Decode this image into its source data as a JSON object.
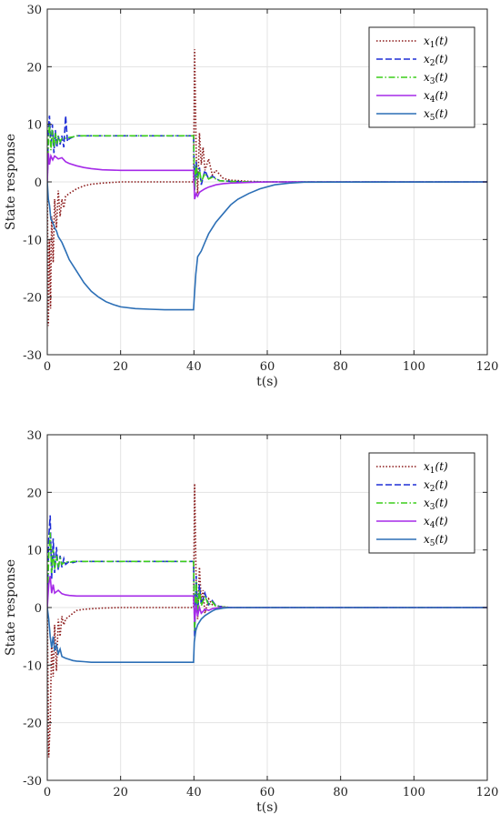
{
  "chart_data": [
    {
      "type": "line",
      "xlabel": "t(s)",
      "ylabel": "State response",
      "xlim": [
        0,
        120
      ],
      "ylim": [
        -30,
        30
      ],
      "xticks": [
        0,
        20,
        40,
        60,
        80,
        100,
        120
      ],
      "yticks": [
        -30,
        -20,
        -10,
        0,
        10,
        20,
        30
      ],
      "grid": true,
      "legend_position": "top-right",
      "series": [
        {
          "name": "x_1(t)",
          "label_main": "x",
          "label_sub": "1",
          "label_tail": "(t)",
          "color": "#8B1A1A",
          "dash": "dotted",
          "x": [
            0,
            0.3,
            0.6,
            0.9,
            1.2,
            1.6,
            2.0,
            2.5,
            3.0,
            3.5,
            4.0,
            4.5,
            5.0,
            6,
            8,
            10,
            12,
            15,
            20,
            25,
            30,
            35,
            39.9,
            40.2,
            40.6,
            41.0,
            41.5,
            42.0,
            42.5,
            43.0,
            44,
            45,
            46,
            48,
            50,
            55,
            60,
            120
          ],
          "y": [
            0,
            -25,
            -10,
            -22,
            -6,
            -14,
            -3,
            -8,
            -1.5,
            -6,
            -3,
            -4.5,
            -2.5,
            -2,
            -1.2,
            -0.7,
            -0.4,
            -0.2,
            0,
            0,
            0,
            0,
            0,
            23,
            5,
            -2,
            8.5,
            3,
            6,
            2,
            4,
            1.2,
            2,
            0.6,
            0.3,
            0.1,
            0,
            0
          ]
        },
        {
          "name": "x_2(t)",
          "label_main": "x",
          "label_sub": "2",
          "label_tail": "(t)",
          "color": "#1f2ed6",
          "dash": "dashed",
          "x": [
            0,
            0.3,
            0.6,
            1.0,
            1.4,
            1.8,
            2.2,
            2.6,
            3.0,
            3.5,
            4.0,
            4.5,
            5.0,
            5.5,
            6.0,
            7,
            8,
            10,
            15,
            20,
            30,
            39.9,
            40.2,
            40.6,
            41.0,
            41.5,
            42.0,
            43,
            44,
            45,
            47,
            50,
            55,
            120
          ],
          "y": [
            0,
            9,
            11.5,
            6,
            10,
            5,
            9,
            6,
            8,
            6.5,
            8,
            6,
            11.5,
            7,
            7.5,
            7.8,
            8,
            8,
            8,
            8,
            8,
            8,
            -1.5,
            3.5,
            0.5,
            2.5,
            -0.5,
            2,
            0.5,
            1,
            0.2,
            0.1,
            0,
            0
          ]
        },
        {
          "name": "x_3(t)",
          "label_main": "x",
          "label_sub": "3",
          "label_tail": "(t)",
          "color": "#3ccd1a",
          "dash": "dashdot",
          "x": [
            0,
            0.3,
            0.6,
            1.0,
            1.4,
            1.8,
            2.2,
            2.6,
            3.0,
            3.5,
            4.0,
            5,
            6,
            7,
            8,
            10,
            15,
            20,
            30,
            39.9,
            40.2,
            40.6,
            41.0,
            41.5,
            42.0,
            43,
            44,
            45,
            47,
            50,
            55,
            120
          ],
          "y": [
            0,
            7,
            10,
            5.5,
            9,
            6,
            8.5,
            6.5,
            8,
            7,
            7.5,
            7.6,
            7.7,
            7.8,
            8,
            8,
            8,
            8,
            8,
            8,
            -1.5,
            3,
            0.5,
            2.2,
            0,
            1.5,
            0.5,
            0.8,
            0.2,
            0.1,
            0,
            0
          ]
        },
        {
          "name": "x_4(t)",
          "label_main": "x",
          "label_sub": "4",
          "label_tail": "(t)",
          "color": "#a52ae8",
          "dash": "solid",
          "x": [
            0,
            0.3,
            0.6,
            1.0,
            1.5,
            2.0,
            3.0,
            4.0,
            5,
            6,
            8,
            10,
            12,
            15,
            20,
            30,
            39.9,
            40.2,
            40.6,
            41.0,
            41.5,
            42,
            43,
            44,
            46,
            48,
            50,
            55,
            60,
            120
          ],
          "y": [
            0,
            5,
            3,
            4.5,
            3.8,
            4.5,
            4,
            4.2,
            3.5,
            3.2,
            2.8,
            2.5,
            2.3,
            2.1,
            2,
            2,
            2,
            -3,
            -2,
            -2.5,
            -1.8,
            -1.6,
            -1.2,
            -0.9,
            -0.5,
            -0.3,
            -0.2,
            -0.1,
            0,
            0
          ]
        },
        {
          "name": "x_5(t)",
          "label_main": "x",
          "label_sub": "5",
          "label_tail": "(t)",
          "color": "#2c6fb6",
          "dash": "solid",
          "x": [
            0,
            0.3,
            0.6,
            1.0,
            1.5,
            2.0,
            2.5,
            3.0,
            4.0,
            5,
            6,
            8,
            10,
            12,
            14,
            16,
            18,
            20,
            24,
            28,
            32,
            36,
            39.9,
            40.1,
            40.5,
            41,
            42,
            43,
            44,
            46,
            48,
            50,
            52,
            55,
            58,
            62,
            66,
            70,
            120
          ],
          "y": [
            0,
            -3,
            -4,
            -6.5,
            -7,
            -8,
            -8.5,
            -9.5,
            -10.5,
            -12,
            -13.5,
            -15.5,
            -17.5,
            -19,
            -20,
            -20.8,
            -21.3,
            -21.7,
            -22,
            -22.1,
            -22.2,
            -22.2,
            -22.2,
            -20,
            -16,
            -13,
            -12,
            -10.5,
            -9,
            -7,
            -5.5,
            -4,
            -3,
            -2,
            -1.2,
            -0.5,
            -0.2,
            -0.05,
            0
          ]
        }
      ]
    },
    {
      "type": "line",
      "xlabel": "t(s)",
      "ylabel": "State response",
      "xlim": [
        0,
        120
      ],
      "ylim": [
        -30,
        30
      ],
      "xticks": [
        0,
        20,
        40,
        60,
        80,
        100,
        120
      ],
      "yticks": [
        -30,
        -20,
        -10,
        0,
        10,
        20,
        30
      ],
      "grid": true,
      "legend_position": "top-right",
      "series": [
        {
          "name": "x_1(t)",
          "label_main": "x",
          "label_sub": "1",
          "label_tail": "(t)",
          "color": "#8B1A1A",
          "dash": "dotted",
          "x": [
            0,
            0.4,
            0.8,
            1.2,
            1.6,
            2.0,
            2.5,
            3.0,
            3.5,
            4.0,
            4.5,
            5,
            6,
            7,
            8,
            10,
            15,
            20,
            30,
            39.9,
            40.2,
            40.6,
            41,
            41.5,
            42,
            42.5,
            43,
            44,
            45,
            47,
            50,
            120
          ],
          "y": [
            0,
            -26,
            -20,
            -6,
            -12,
            -3,
            -11,
            -2,
            -5,
            -1.5,
            -3,
            -2,
            -1.5,
            -1,
            -0.5,
            -0.3,
            -0.1,
            0,
            0,
            0,
            21.5,
            4,
            -2,
            7,
            1,
            3,
            -1,
            1.5,
            0.5,
            0.2,
            0,
            0
          ]
        },
        {
          "name": "x_2(t)",
          "label_main": "x",
          "label_sub": "2",
          "label_tail": "(t)",
          "color": "#1f2ed6",
          "dash": "dashed",
          "x": [
            0,
            0.4,
            0.8,
            1.2,
            1.6,
            2.0,
            2.5,
            3.0,
            3.5,
            4.0,
            4.5,
            5,
            6,
            7,
            8,
            10,
            20,
            30,
            39.9,
            40.2,
            40.6,
            41,
            41.5,
            42,
            43,
            44,
            45,
            46,
            48,
            50,
            120
          ],
          "y": [
            0,
            12,
            16,
            5,
            12,
            6,
            10.5,
            6.5,
            9,
            7,
            8.5,
            7.5,
            8,
            7.8,
            8,
            8,
            8,
            8,
            8,
            -5,
            5.5,
            -1,
            4,
            0.5,
            2.5,
            0.5,
            1.2,
            0.3,
            0.1,
            0,
            0
          ]
        },
        {
          "name": "x_3(t)",
          "label_main": "x",
          "label_sub": "3",
          "label_tail": "(t)",
          "color": "#3ccd1a",
          "dash": "dashdot",
          "x": [
            0,
            0.4,
            0.8,
            1.2,
            1.6,
            2.0,
            2.5,
            3.0,
            3.5,
            4.0,
            5,
            6,
            7,
            8,
            10,
            20,
            30,
            39.9,
            40.2,
            40.6,
            41,
            41.5,
            42,
            43,
            44,
            45,
            46,
            48,
            50,
            120
          ],
          "y": [
            0,
            9,
            13,
            6,
            10,
            6.5,
            9,
            7,
            8.5,
            7.5,
            8,
            7.8,
            8,
            8,
            8,
            8,
            8,
            8,
            -4,
            4.5,
            -0.5,
            3,
            0.3,
            2,
            0.4,
            1,
            0.2,
            0.1,
            0,
            0
          ]
        },
        {
          "name": "x_4(t)",
          "label_main": "x",
          "label_sub": "4",
          "label_tail": "(t)",
          "color": "#a52ae8",
          "dash": "solid",
          "x": [
            0,
            0.4,
            0.8,
            1.2,
            1.6,
            2.0,
            3,
            4,
            5,
            6,
            8,
            10,
            15,
            20,
            30,
            39.9,
            40.2,
            40.6,
            41,
            41.5,
            42,
            43,
            44,
            45,
            46,
            48,
            50,
            120
          ],
          "y": [
            0,
            4,
            5.5,
            2.5,
            4,
            2.5,
            3,
            2.4,
            2.2,
            2.1,
            2,
            2,
            2,
            2,
            2,
            2,
            -2.5,
            0.5,
            -1.5,
            0,
            -1,
            -0.3,
            -0.5,
            -0.2,
            -0.1,
            0,
            0,
            0
          ]
        },
        {
          "name": "x_5(t)",
          "label_main": "x",
          "label_sub": "5",
          "label_tail": "(t)",
          "color": "#2c6fb6",
          "dash": "solid",
          "x": [
            0,
            0.4,
            0.8,
            1.2,
            1.6,
            2.0,
            2.5,
            3.0,
            3.5,
            4.0,
            5,
            6,
            7,
            8,
            10,
            12,
            15,
            20,
            30,
            39.9,
            40.1,
            40.5,
            41,
            41.5,
            42,
            43,
            44,
            45,
            46,
            47,
            48,
            50,
            120
          ],
          "y": [
            0,
            -2,
            -5,
            -7,
            -5,
            -7.5,
            -6.5,
            -8,
            -7.2,
            -8.5,
            -8.8,
            -9,
            -9.2,
            -9.3,
            -9.4,
            -9.5,
            -9.5,
            -9.5,
            -9.5,
            -9.5,
            -6,
            -4,
            -3,
            -2.5,
            -2,
            -1.4,
            -1,
            -0.6,
            -0.3,
            -0.2,
            -0.1,
            0,
            0
          ]
        }
      ]
    }
  ]
}
